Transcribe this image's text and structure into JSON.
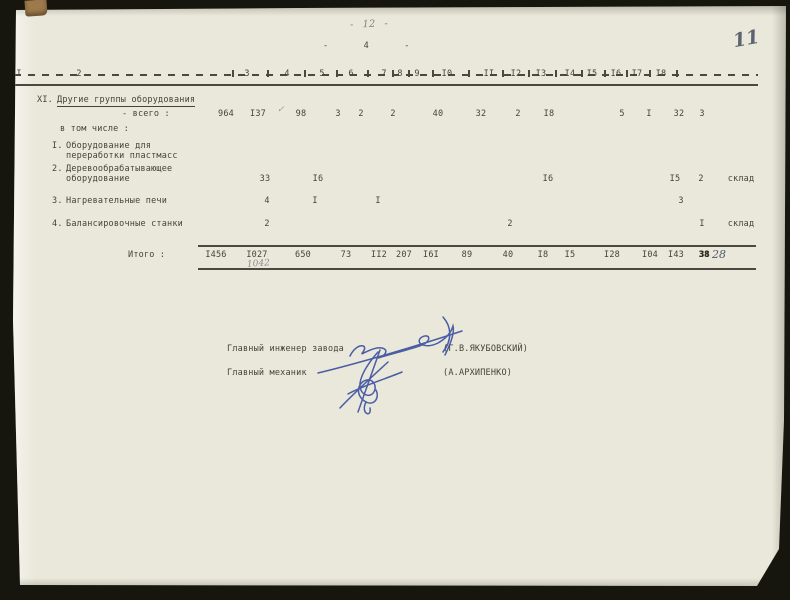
{
  "page_marks": {
    "pencil_page": "- 12 -",
    "typed_page": "- 4 -",
    "corner_number": "11",
    "checkmark": "✓"
  },
  "table": {
    "header_cols": [
      "I",
      "2",
      "3",
      "4",
      "5",
      "6",
      "7",
      "8",
      "9",
      "I0",
      "II",
      "I2",
      "I3",
      "I4",
      "I5",
      "I6",
      "I7",
      "I8"
    ],
    "section": {
      "number": "XI.",
      "title": "Другие группы оборудования"
    },
    "rows": [
      {
        "id": "vsego",
        "label": "- всего :",
        "values": [
          "964",
          "I37",
          "98",
          "3",
          "2",
          "2",
          "40",
          "32",
          "2",
          "I8",
          "5",
          "I",
          "32",
          "3"
        ]
      },
      {
        "id": "subnote",
        "label": "в том числе :",
        "values": []
      },
      {
        "id": "plastic",
        "num": "I.",
        "label_lines": [
          "Оборудование для",
          "переработки пластмасс"
        ],
        "values": []
      },
      {
        "id": "wood",
        "num": "2.",
        "label_lines": [
          "Деревообрабатывающее",
          "оборудование"
        ],
        "values": [
          "33",
          "I6",
          "I6",
          "I5",
          "2",
          "склад"
        ]
      },
      {
        "id": "furnace",
        "num": "3.",
        "label_lines": [
          "Нагревательные печи"
        ],
        "values": [
          "4",
          "I",
          "I",
          "3"
        ]
      },
      {
        "id": "balance",
        "num": "4.",
        "label_lines": [
          "Балансировочные станки"
        ],
        "values": [
          "2",
          "2",
          "I",
          "склад"
        ]
      }
    ],
    "total": {
      "label": "Итого :",
      "values": [
        "I456",
        "I027",
        "650",
        "73",
        "II2",
        "207",
        "I6I",
        "89",
        "40",
        "I8",
        "I5",
        "I28",
        "I04",
        "I43",
        "38"
      ],
      "handwritten_under_1027": "1042",
      "handwritten_correction": "28"
    }
  },
  "signatures": [
    {
      "title": "Главный инженер завода",
      "name": "(Г.В.ЯКУБОВСКИЙ)"
    },
    {
      "title": "Главный механик",
      "name": "(А.АРХИПЕНКО)"
    }
  ]
}
